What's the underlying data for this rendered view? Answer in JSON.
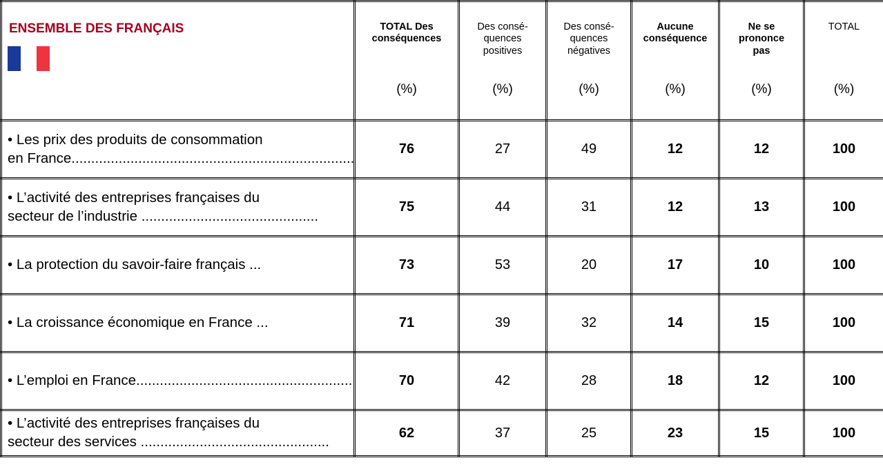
{
  "header": {
    "title": "ENSEMBLE DES FRANÇAIS"
  },
  "columns": [
    {
      "label": "TOTAL Des\nconséquences",
      "unit": "(%)"
    },
    {
      "label": "Des consé-\nquences\npositives",
      "unit": "(%)"
    },
    {
      "label": "Des consé-\nquences\nnégatives",
      "unit": "(%)"
    },
    {
      "label": "Aucune\nconséquence",
      "unit": "(%)"
    },
    {
      "label": "Ne se\nprononce\npas",
      "unit": "(%)"
    },
    {
      "label": "TOTAL",
      "unit": "(%)"
    }
  ],
  "rows": [
    {
      "label": "• Les prix des produits de consommation\nen France.........................................................................",
      "values": [
        76,
        27,
        49,
        12,
        12,
        100
      ]
    },
    {
      "label": "• L’activité des entreprises françaises du\nsecteur de l’industrie .............................................",
      "values": [
        75,
        44,
        31,
        12,
        13,
        100
      ]
    },
    {
      "label": "• La protection du savoir-faire français ...",
      "values": [
        73,
        53,
        20,
        17,
        10,
        100
      ]
    },
    {
      "label": "• La croissance économique en France ...",
      "values": [
        71,
        39,
        32,
        14,
        15,
        100
      ]
    },
    {
      "label": "• L’emploi en France...........................................................",
      "values": [
        70,
        42,
        28,
        18,
        12,
        100
      ]
    },
    {
      "label": "• L’activité des entreprises françaises du\nsecteur des services ................................................",
      "values": [
        62,
        37,
        25,
        23,
        15,
        100
      ]
    }
  ]
}
